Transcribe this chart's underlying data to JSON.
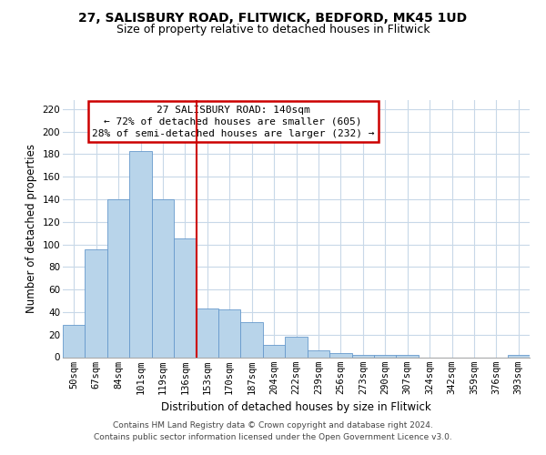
{
  "title_line1": "27, SALISBURY ROAD, FLITWICK, BEDFORD, MK45 1UD",
  "title_line2": "Size of property relative to detached houses in Flitwick",
  "xlabel": "Distribution of detached houses by size in Flitwick",
  "ylabel": "Number of detached properties",
  "bar_labels": [
    "50sqm",
    "67sqm",
    "84sqm",
    "101sqm",
    "119sqm",
    "136sqm",
    "153sqm",
    "170sqm",
    "187sqm",
    "204sqm",
    "222sqm",
    "239sqm",
    "256sqm",
    "273sqm",
    "290sqm",
    "307sqm",
    "324sqm",
    "342sqm",
    "359sqm",
    "376sqm",
    "393sqm"
  ],
  "bar_values": [
    29,
    96,
    140,
    183,
    140,
    105,
    43,
    42,
    31,
    11,
    18,
    6,
    4,
    2,
    2,
    2,
    0,
    0,
    0,
    0,
    2
  ],
  "bar_color": "#b8d4ea",
  "bar_edge_color": "#6699cc",
  "vline_x": 5.5,
  "vline_color": "#cc0000",
  "ylim": [
    0,
    228
  ],
  "yticks": [
    0,
    20,
    40,
    60,
    80,
    100,
    120,
    140,
    160,
    180,
    200,
    220
  ],
  "annotation_title": "27 SALISBURY ROAD: 140sqm",
  "annotation_line1": "← 72% of detached houses are smaller (605)",
  "annotation_line2": "28% of semi-detached houses are larger (232) →",
  "annotation_box_color": "#ffffff",
  "annotation_box_edge": "#cc0000",
  "footer_line1": "Contains HM Land Registry data © Crown copyright and database right 2024.",
  "footer_line2": "Contains public sector information licensed under the Open Government Licence v3.0.",
  "bg_color": "#ffffff",
  "grid_color": "#c8d8e8",
  "title_fontsize": 10,
  "subtitle_fontsize": 9,
  "axis_label_fontsize": 8.5,
  "tick_fontsize": 7.5,
  "footer_fontsize": 6.5
}
